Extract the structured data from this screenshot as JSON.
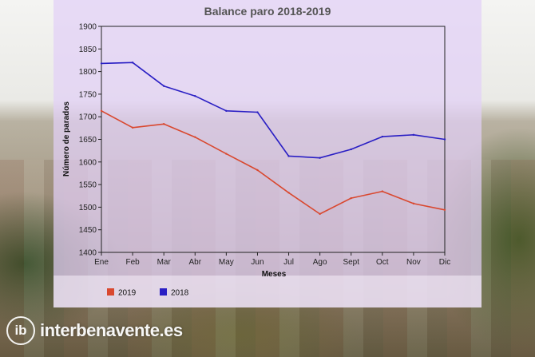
{
  "chart_data": {
    "type": "line",
    "title": "Balance paro 2018-2019",
    "xlabel": "Meses",
    "ylabel": "Número de parados",
    "categories": [
      "Ene",
      "Feb",
      "Mar",
      "Abr",
      "May",
      "Jun",
      "Jul",
      "Ago",
      "Sept",
      "Oct",
      "Nov",
      "Dic"
    ],
    "ylim": [
      1400,
      1900
    ],
    "yticks": [
      1400,
      1450,
      1500,
      1550,
      1600,
      1650,
      1700,
      1750,
      1800,
      1850,
      1900
    ],
    "grid": false,
    "legend_position": "bottom-left",
    "series": [
      {
        "name": "2019",
        "color": "#d9482f",
        "values": [
          1713,
          1676,
          1684,
          1655,
          1618,
          1582,
          1532,
          1485,
          1520,
          1535,
          1508,
          1494
        ]
      },
      {
        "name": "2018",
        "color": "#2a1fc4",
        "values": [
          1818,
          1820,
          1768,
          1746,
          1713,
          1710,
          1613,
          1609,
          1628,
          1656,
          1660,
          1650
        ]
      }
    ]
  },
  "watermark": {
    "logo": "ib",
    "text": "interbenavente.es"
  }
}
